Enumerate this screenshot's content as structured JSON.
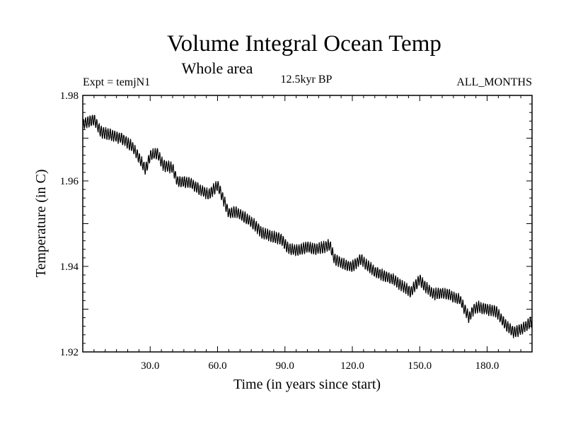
{
  "chart_data": {
    "type": "line",
    "title": "Volume Integral Ocean Temp",
    "subtitle": "Whole area",
    "expt_label": "Expt = temjN1",
    "period_label": "12.5kyr BP",
    "months_label": "ALL_MONTHS",
    "xlabel": "Time (in years since start)",
    "ylabel": "Temperature (in C)",
    "xlim": [
      0,
      200
    ],
    "ylim": [
      1.92,
      1.98
    ],
    "xticks": [
      {
        "value": 30,
        "label": "30.0"
      },
      {
        "value": 60,
        "label": "60.0"
      },
      {
        "value": 90,
        "label": "90.0"
      },
      {
        "value": 120,
        "label": "120.0"
      },
      {
        "value": 150,
        "label": "150.0"
      },
      {
        "value": 180,
        "label": "180.0"
      }
    ],
    "yticks": [
      {
        "value": 1.92,
        "label": "1.92"
      },
      {
        "value": 1.94,
        "label": "1.94"
      },
      {
        "value": 1.96,
        "label": "1.96"
      },
      {
        "value": 1.98,
        "label": "1.98"
      }
    ],
    "series": [
      {
        "name": "Volume Integral Ocean Temp",
        "color": "#000000",
        "seasonal_amplitude": 0.0012,
        "x": [
          0,
          5,
          8,
          12,
          18,
          22,
          26,
          28,
          30,
          33,
          36,
          40,
          42,
          48,
          52,
          56,
          60,
          62,
          65,
          68,
          72,
          76,
          80,
          84,
          88,
          92,
          96,
          100,
          104,
          110,
          112,
          116,
          120,
          124,
          126,
          130,
          134,
          138,
          142,
          146,
          150,
          152,
          156,
          160,
          164,
          168,
          172,
          174,
          176,
          180,
          184,
          186,
          188,
          192,
          194,
          196,
          200
        ],
        "y": [
          1.9732,
          1.9744,
          1.9715,
          1.9708,
          1.9698,
          1.968,
          1.9645,
          1.9627,
          1.9658,
          1.9666,
          1.9636,
          1.963,
          1.96,
          1.9595,
          1.958,
          1.9568,
          1.959,
          1.9565,
          1.9525,
          1.9528,
          1.9515,
          1.95,
          1.9478,
          1.947,
          1.9465,
          1.944,
          1.9438,
          1.9445,
          1.944,
          1.945,
          1.9418,
          1.9405,
          1.94,
          1.9418,
          1.9405,
          1.9388,
          1.9378,
          1.937,
          1.9355,
          1.934,
          1.937,
          1.9355,
          1.9335,
          1.9338,
          1.9332,
          1.9322,
          1.928,
          1.93,
          1.9305,
          1.93,
          1.9295,
          1.928,
          1.9265,
          1.9245,
          1.925,
          1.9255,
          1.9272
        ]
      }
    ]
  }
}
